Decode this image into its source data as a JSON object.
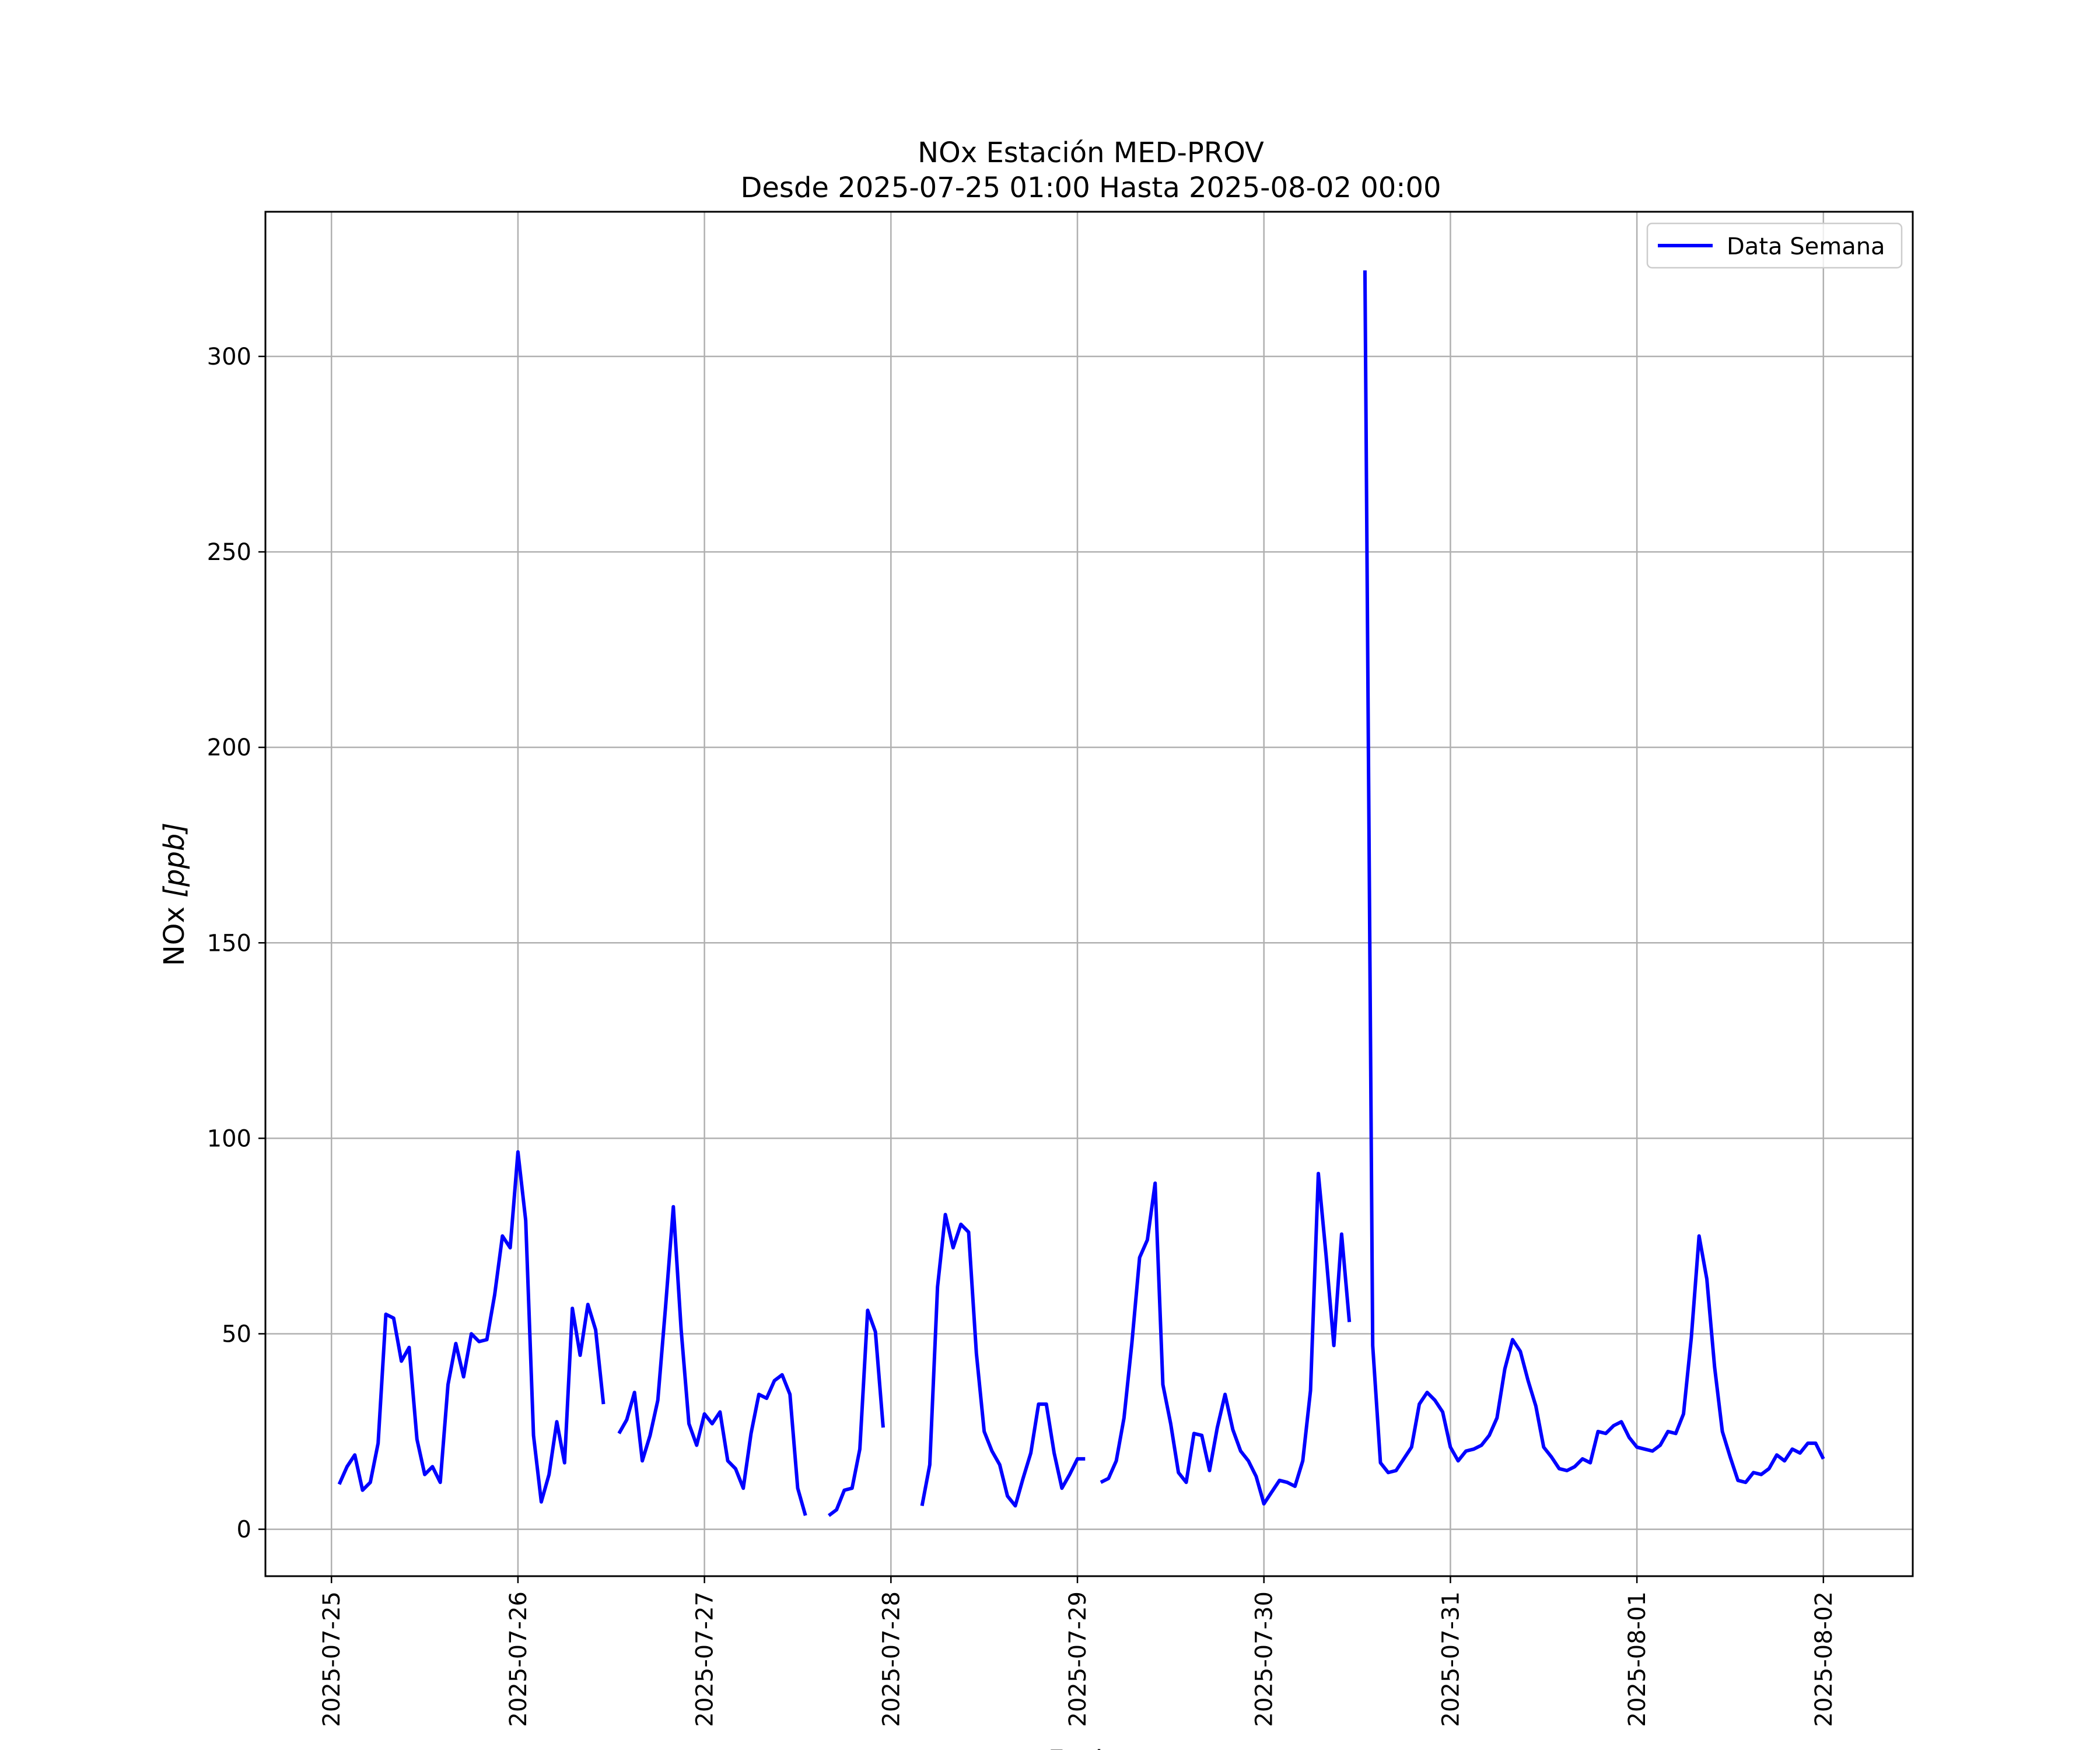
{
  "chart_data": {
    "type": "line",
    "title": "NOx Estación MED-PROV",
    "subtitle": "Desde 2025-07-25 01:00 Hasta 2025-08-02 00:00",
    "xlabel": "Fecha",
    "ylabel_main": "NOx ",
    "ylabel_unit": "[ppb]",
    "ylim": [
      -12,
      337
    ],
    "xlim": [
      "2025-07-24 15:30",
      "2025-08-02 11:30"
    ],
    "y_ticks": [
      0,
      50,
      100,
      150,
      200,
      250,
      300
    ],
    "x_ticks": [
      "2025-07-25",
      "2025-07-26",
      "2025-07-27",
      "2025-07-28",
      "2025-07-29",
      "2025-07-30",
      "2025-07-31",
      "2025-08-01",
      "2025-08-02"
    ],
    "grid": true,
    "legend_position": "top-right",
    "series": [
      {
        "name": "Data Semana",
        "color": "#0000ff",
        "points": [
          [
            "2025-07-25 01:00",
            11.5
          ],
          [
            "2025-07-25 02:00",
            16
          ],
          [
            "2025-07-25 03:00",
            19
          ],
          [
            "2025-07-25 04:00",
            10
          ],
          [
            "2025-07-25 05:00",
            12
          ],
          [
            "2025-07-25 06:00",
            22
          ],
          [
            "2025-07-25 07:00",
            55
          ],
          [
            "2025-07-25 08:00",
            54
          ],
          [
            "2025-07-25 09:00",
            43
          ],
          [
            "2025-07-25 10:00",
            46.5
          ],
          [
            "2025-07-25 11:00",
            23
          ],
          [
            "2025-07-25 12:00",
            14
          ],
          [
            "2025-07-25 13:00",
            16
          ],
          [
            "2025-07-25 14:00",
            12
          ],
          [
            "2025-07-25 15:00",
            37
          ],
          [
            "2025-07-25 16:00",
            47.5
          ],
          [
            "2025-07-25 17:00",
            39
          ],
          [
            "2025-07-25 18:00",
            50
          ],
          [
            "2025-07-25 19:00",
            48
          ],
          [
            "2025-07-25 20:00",
            48.5
          ],
          [
            "2025-07-25 21:00",
            60
          ],
          [
            "2025-07-25 22:00",
            75
          ],
          [
            "2025-07-25 23:00",
            72
          ],
          [
            "2025-07-26 00:00",
            96.5
          ],
          [
            "2025-07-26 01:00",
            79
          ],
          [
            "2025-07-26 02:00",
            24
          ],
          [
            "2025-07-26 03:00",
            7
          ],
          [
            "2025-07-26 04:00",
            14
          ],
          [
            "2025-07-26 05:00",
            27.5
          ],
          [
            "2025-07-26 06:00",
            17
          ],
          [
            "2025-07-26 07:00",
            56.5
          ],
          [
            "2025-07-26 08:00",
            44.5
          ],
          [
            "2025-07-26 09:00",
            57.5
          ],
          [
            "2025-07-26 10:00",
            51
          ],
          [
            "2025-07-26 11:00",
            32
          ],
          [
            "2025-07-26 12:00",
            null
          ],
          [
            "2025-07-26 13:00",
            24.5
          ],
          [
            "2025-07-26 14:00",
            28
          ],
          [
            "2025-07-26 15:00",
            35
          ],
          [
            "2025-07-26 16:00",
            17.5
          ],
          [
            "2025-07-26 17:00",
            24
          ],
          [
            "2025-07-26 18:00",
            33
          ],
          [
            "2025-07-26 19:00",
            57
          ],
          [
            "2025-07-26 20:00",
            82.5
          ],
          [
            "2025-07-26 21:00",
            51
          ],
          [
            "2025-07-26 22:00",
            27
          ],
          [
            "2025-07-26 23:00",
            21.5
          ],
          [
            "2025-07-27 00:00",
            29.5
          ],
          [
            "2025-07-27 01:00",
            27
          ],
          [
            "2025-07-27 02:00",
            30
          ],
          [
            "2025-07-27 03:00",
            17.5
          ],
          [
            "2025-07-27 04:00",
            15.5
          ],
          [
            "2025-07-27 05:00",
            10.5
          ],
          [
            "2025-07-27 06:00",
            24.5
          ],
          [
            "2025-07-27 07:00",
            34.5
          ],
          [
            "2025-07-27 08:00",
            33.5
          ],
          [
            "2025-07-27 09:00",
            38
          ],
          [
            "2025-07-27 10:00",
            39.5
          ],
          [
            "2025-07-27 11:00",
            34.5
          ],
          [
            "2025-07-27 12:00",
            10.5
          ],
          [
            "2025-07-27 13:00",
            3.5
          ],
          [
            "2025-07-27 14:00",
            null
          ],
          [
            "2025-07-27 15:00",
            null
          ],
          [
            "2025-07-27 16:00",
            3.5
          ],
          [
            "2025-07-27 17:00",
            5
          ],
          [
            "2025-07-27 18:00",
            10
          ],
          [
            "2025-07-27 19:00",
            10.5
          ],
          [
            "2025-07-27 20:00",
            20.5
          ],
          [
            "2025-07-27 21:00",
            56
          ],
          [
            "2025-07-27 22:00",
            50.5
          ],
          [
            "2025-07-27 23:00",
            26
          ],
          [
            "2025-07-28 00:00",
            null
          ],
          [
            "2025-07-28 01:00",
            null
          ],
          [
            "2025-07-28 02:00",
            null
          ],
          [
            "2025-07-28 03:00",
            null
          ],
          [
            "2025-07-28 04:00",
            6
          ],
          [
            "2025-07-28 05:00",
            16.5
          ],
          [
            "2025-07-28 06:00",
            62
          ],
          [
            "2025-07-28 07:00",
            80.5
          ],
          [
            "2025-07-28 08:00",
            72
          ],
          [
            "2025-07-28 09:00",
            78
          ],
          [
            "2025-07-28 10:00",
            76
          ],
          [
            "2025-07-28 11:00",
            45
          ],
          [
            "2025-07-28 12:00",
            25
          ],
          [
            "2025-07-28 13:00",
            20
          ],
          [
            "2025-07-28 14:00",
            16.5
          ],
          [
            "2025-07-28 15:00",
            8.5
          ],
          [
            "2025-07-28 16:00",
            6
          ],
          [
            "2025-07-28 17:00",
            13
          ],
          [
            "2025-07-28 18:00",
            19.5
          ],
          [
            "2025-07-28 19:00",
            32
          ],
          [
            "2025-07-28 20:00",
            32
          ],
          [
            "2025-07-28 21:00",
            19.5
          ],
          [
            "2025-07-28 22:00",
            10.5
          ],
          [
            "2025-07-28 23:00",
            14
          ],
          [
            "2025-07-29 00:00",
            18
          ],
          [
            "2025-07-29 01:00",
            18
          ],
          [
            "2025-07-29 02:00",
            null
          ],
          [
            "2025-07-29 03:00",
            12
          ],
          [
            "2025-07-29 04:00",
            13
          ],
          [
            "2025-07-29 05:00",
            17.5
          ],
          [
            "2025-07-29 06:00",
            28.5
          ],
          [
            "2025-07-29 07:00",
            47.5
          ],
          [
            "2025-07-29 08:00",
            69.5
          ],
          [
            "2025-07-29 09:00",
            74
          ],
          [
            "2025-07-29 10:00",
            88.5
          ],
          [
            "2025-07-29 11:00",
            37
          ],
          [
            "2025-07-29 12:00",
            27
          ],
          [
            "2025-07-29 13:00",
            14.5
          ],
          [
            "2025-07-29 14:00",
            12
          ],
          [
            "2025-07-29 15:00",
            24.5
          ],
          [
            "2025-07-29 16:00",
            24
          ],
          [
            "2025-07-29 17:00",
            15
          ],
          [
            "2025-07-29 18:00",
            26
          ],
          [
            "2025-07-29 19:00",
            34.5
          ],
          [
            "2025-07-29 20:00",
            25.5
          ],
          [
            "2025-07-29 21:00",
            20
          ],
          [
            "2025-07-29 22:00",
            17.5
          ],
          [
            "2025-07-29 23:00",
            13.5
          ],
          [
            "2025-07-30 00:00",
            6.5
          ],
          [
            "2025-07-30 01:00",
            9.5
          ],
          [
            "2025-07-30 02:00",
            12.5
          ],
          [
            "2025-07-30 03:00",
            12
          ],
          [
            "2025-07-30 04:00",
            11
          ],
          [
            "2025-07-30 05:00",
            17.5
          ],
          [
            "2025-07-30 06:00",
            35.5
          ],
          [
            "2025-07-30 07:00",
            91
          ],
          [
            "2025-07-30 08:00",
            70
          ],
          [
            "2025-07-30 09:00",
            47
          ],
          [
            "2025-07-30 10:00",
            75.5
          ],
          [
            "2025-07-30 11:00",
            53
          ],
          [
            "2025-07-30 12:00",
            null
          ],
          [
            "2025-07-30 13:00",
            322
          ],
          [
            "2025-07-30 14:00",
            47
          ],
          [
            "2025-07-30 15:00",
            17
          ],
          [
            "2025-07-30 16:00",
            14.5
          ],
          [
            "2025-07-30 17:00",
            15
          ],
          [
            "2025-07-30 18:00",
            18
          ],
          [
            "2025-07-30 19:00",
            21
          ],
          [
            "2025-07-30 20:00",
            32
          ],
          [
            "2025-07-30 21:00",
            35
          ],
          [
            "2025-07-30 22:00",
            33
          ],
          [
            "2025-07-30 23:00",
            30
          ],
          [
            "2025-07-31 00:00",
            21
          ],
          [
            "2025-07-31 01:00",
            17.5
          ],
          [
            "2025-07-31 02:00",
            20
          ],
          [
            "2025-07-31 03:00",
            20.5
          ],
          [
            "2025-07-31 04:00",
            21.5
          ],
          [
            "2025-07-31 05:00",
            24
          ],
          [
            "2025-07-31 06:00",
            28.5
          ],
          [
            "2025-07-31 07:00",
            41
          ],
          [
            "2025-07-31 08:00",
            48.5
          ],
          [
            "2025-07-31 09:00",
            45.5
          ],
          [
            "2025-07-31 10:00",
            38
          ],
          [
            "2025-07-31 11:00",
            31.5
          ],
          [
            "2025-07-31 12:00",
            21
          ],
          [
            "2025-07-31 13:00",
            18.5
          ],
          [
            "2025-07-31 14:00",
            15.5
          ],
          [
            "2025-07-31 15:00",
            15
          ],
          [
            "2025-07-31 16:00",
            16
          ],
          [
            "2025-07-31 17:00",
            18
          ],
          [
            "2025-07-31 18:00",
            17
          ],
          [
            "2025-07-31 19:00",
            25
          ],
          [
            "2025-07-31 20:00",
            24.5
          ],
          [
            "2025-07-31 21:00",
            26.5
          ],
          [
            "2025-07-31 22:00",
            27.5
          ],
          [
            "2025-07-31 23:00",
            23.5
          ],
          [
            "2025-08-01 00:00",
            21
          ],
          [
            "2025-08-01 01:00",
            20.5
          ],
          [
            "2025-08-01 02:00",
            20
          ],
          [
            "2025-08-01 03:00",
            21.5
          ],
          [
            "2025-08-01 04:00",
            25
          ],
          [
            "2025-08-01 05:00",
            24.5
          ],
          [
            "2025-08-01 06:00",
            29.5
          ],
          [
            "2025-08-01 07:00",
            49
          ],
          [
            "2025-08-01 08:00",
            75
          ],
          [
            "2025-08-01 09:00",
            64
          ],
          [
            "2025-08-01 10:00",
            41.5
          ],
          [
            "2025-08-01 11:00",
            25
          ],
          [
            "2025-08-01 12:00",
            18.5
          ],
          [
            "2025-08-01 13:00",
            12.5
          ],
          [
            "2025-08-01 14:00",
            12
          ],
          [
            "2025-08-01 15:00",
            14.5
          ],
          [
            "2025-08-01 16:00",
            14
          ],
          [
            "2025-08-01 17:00",
            15.5
          ],
          [
            "2025-08-01 18:00",
            19
          ],
          [
            "2025-08-01 19:00",
            17.5
          ],
          [
            "2025-08-01 20:00",
            20.5
          ],
          [
            "2025-08-01 21:00",
            19.5
          ],
          [
            "2025-08-01 22:00",
            22
          ],
          [
            "2025-08-01 23:00",
            22
          ],
          [
            "2025-08-02 00:00",
            18
          ]
        ]
      }
    ]
  }
}
